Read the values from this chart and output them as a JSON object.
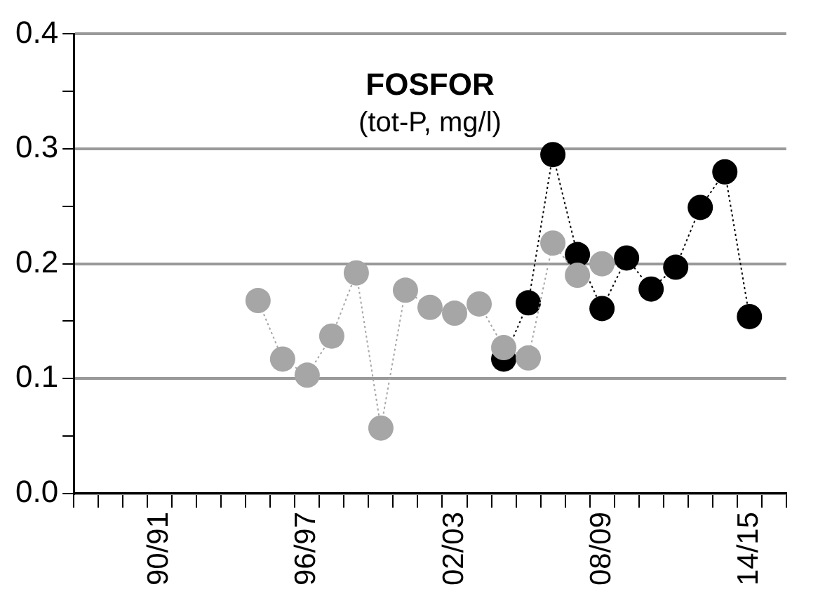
{
  "chart_data": {
    "type": "line",
    "title": "FOSFOR",
    "subtitle": "(tot-P, mg/l)",
    "categories": [
      null,
      null,
      null,
      "90/91",
      null,
      null,
      null,
      null,
      null,
      "96/97",
      null,
      null,
      null,
      null,
      null,
      "02/03",
      null,
      null,
      null,
      null,
      null,
      "08/09",
      null,
      null,
      null,
      null,
      null,
      "14/15",
      null
    ],
    "series": [
      {
        "color": "#a6a6a6",
        "values": [
          null,
          null,
          null,
          null,
          null,
          null,
          null,
          0.168,
          0.117,
          0.103,
          0.137,
          0.192,
          0.057,
          0.177,
          0.162,
          0.157,
          0.165,
          0.127,
          0.118,
          0.218,
          0.19,
          0.2,
          null,
          null,
          null,
          null,
          null,
          null,
          null
        ]
      },
      {
        "color": "#000000",
        "values": [
          null,
          null,
          null,
          null,
          null,
          null,
          null,
          null,
          null,
          null,
          null,
          null,
          null,
          null,
          null,
          null,
          null,
          0.117,
          0.166,
          0.295,
          0.208,
          0.161,
          0.205,
          0.178,
          0.197,
          0.249,
          0.28,
          0.154,
          null
        ]
      }
    ],
    "ylim": [
      0,
      0.4
    ],
    "yticks": [
      {
        "value": 0,
        "label": "0.0"
      },
      {
        "value": 0.05,
        "label": null
      },
      {
        "value": 0.1,
        "label": "0.1"
      },
      {
        "value": 0.15,
        "label": null
      },
      {
        "value": 0.2,
        "label": "0.2"
      },
      {
        "value": 0.25,
        "label": null
      },
      {
        "value": 0.3,
        "label": "0.3"
      },
      {
        "value": 0.35,
        "label": null
      },
      {
        "value": 0.4,
        "label": "0.4"
      }
    ],
    "grid": "y",
    "legend": false,
    "marker": "circle",
    "line_style": "dotted"
  }
}
